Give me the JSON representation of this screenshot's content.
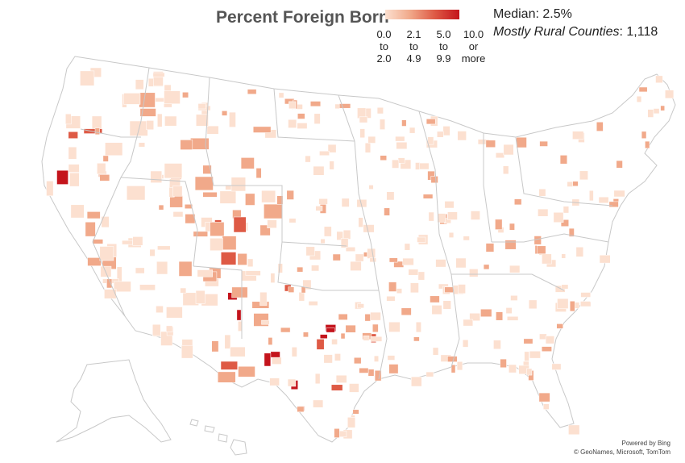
{
  "map": {
    "title": "Percent Foreign Born",
    "legend": {
      "bins": [
        {
          "lines": [
            "0.0",
            "to",
            "2.0"
          ],
          "color": "#fce0d0"
        },
        {
          "lines": [
            "2.1",
            "to",
            "4.9"
          ],
          "color": "#f1a98a"
        },
        {
          "lines": [
            "5.0",
            "to",
            "9.9"
          ],
          "color": "#de5a45"
        },
        {
          "lines": [
            "10.0",
            "or",
            "more"
          ],
          "color": "#c4141c"
        }
      ]
    },
    "stats": {
      "median": "Median: 2.5%",
      "rural_label": "Mostly Rural Counties",
      "rural_value": ": 1,118"
    },
    "credits": {
      "line1": "Powered by Bing",
      "line2": "© GeoNames, Microsoft, TomTom"
    },
    "colors": {
      "border": "#c8c8c8",
      "land": "#ffffff"
    }
  }
}
